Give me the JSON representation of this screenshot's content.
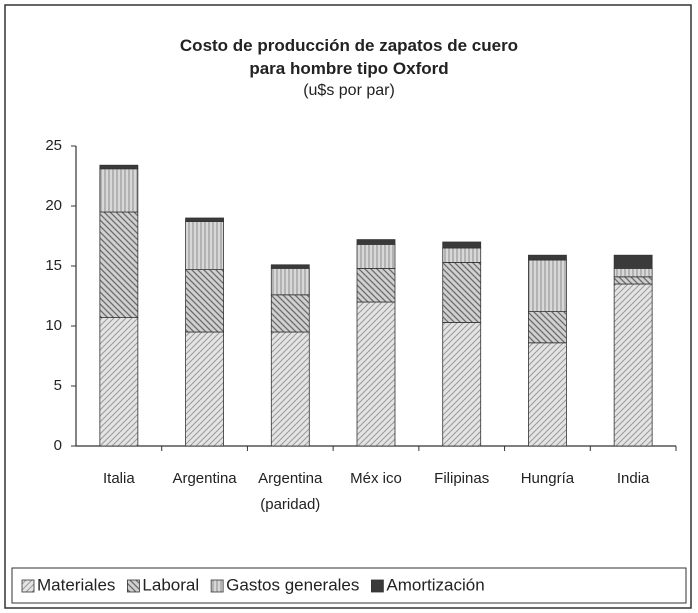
{
  "chart_data": {
    "type": "stacked_bar",
    "title": "Costo de producción de zapatos de cuero para hombre tipo Oxford",
    "subtitle": "(u$s por par)",
    "categories": [
      "Italia",
      "Argentina",
      "Argentina (paridad)",
      "Méx ico",
      "Filipinas",
      "Hungría",
      "India"
    ],
    "series": [
      {
        "name": "Materiales",
        "color": "#9a9a9a",
        "values": [
          10.7,
          9.5,
          9.5,
          12.0,
          10.3,
          8.6,
          13.5
        ]
      },
      {
        "name": "Laboral",
        "color": "#6a6a6a",
        "values": [
          8.8,
          5.2,
          3.1,
          2.8,
          5.0,
          2.6,
          0.6
        ]
      },
      {
        "name": "Gastos generales",
        "color": "#8c8c8c",
        "values": [
          3.6,
          4.0,
          2.2,
          2.0,
          1.2,
          4.3,
          0.7
        ]
      },
      {
        "name": "Amortización",
        "color": "#3a3a3a",
        "values": [
          0.3,
          0.3,
          0.3,
          0.4,
          0.5,
          0.4,
          1.1
        ]
      }
    ],
    "ylim": [
      0,
      25
    ],
    "yticks": [
      0,
      5,
      10,
      15,
      20,
      25
    ],
    "grid": false,
    "legend": "bottom"
  }
}
